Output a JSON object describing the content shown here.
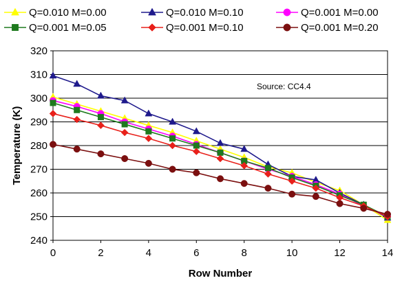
{
  "chart_data": {
    "type": "line",
    "xlabel": "Row Number",
    "ylabel": "Temperature (K)",
    "annotation": "Source: CC4.4",
    "xlim": [
      0,
      14
    ],
    "ylim": [
      240,
      320
    ],
    "xticks": [
      "0",
      "2",
      "4",
      "6",
      "8",
      "10",
      "12",
      "14"
    ],
    "yticks": [
      "240",
      "250",
      "260",
      "270",
      "280",
      "290",
      "300",
      "310",
      "320"
    ],
    "grid": "horizontal",
    "legend_position": "top",
    "x": [
      0,
      1,
      2,
      3,
      4,
      5,
      6,
      7,
      8,
      9,
      10,
      11,
      12,
      13,
      14
    ],
    "series": [
      {
        "name": "Q=0.010 M=0.00",
        "color": "#FFFF00",
        "marker": "triangle",
        "values": [
          300.5,
          297.5,
          294.5,
          291.5,
          288.5,
          285.5,
          282.0,
          278.5,
          275.0,
          271.0,
          268.5,
          264.5,
          261.0,
          255.0,
          248.5
        ]
      },
      {
        "name": "Q=0.010 M=0.10",
        "color": "#1F1A8C",
        "marker": "triangle",
        "values": [
          309.5,
          306.0,
          301.0,
          299.0,
          293.5,
          290.0,
          286.0,
          281.0,
          278.5,
          272.0,
          267.0,
          265.5,
          260.0,
          255.0,
          249.5
        ]
      },
      {
        "name": "Q=0.001 M=0.00",
        "color": "#FF00FF",
        "marker": "circle",
        "values": [
          299.0,
          296.5,
          293.5,
          290.0,
          287.0,
          284.0,
          280.5,
          277.0,
          273.5,
          270.0,
          267.0,
          263.5,
          259.5,
          254.5,
          250.0
        ]
      },
      {
        "name": "Q=0.001 M=0.05",
        "color": "#1E7A1E",
        "marker": "square",
        "values": [
          298.0,
          295.0,
          292.0,
          289.0,
          286.0,
          283.0,
          280.0,
          277.0,
          273.5,
          270.5,
          266.5,
          263.0,
          259.0,
          255.0,
          250.0
        ]
      },
      {
        "name": "Q=0.001 M=0.10",
        "color": "#E8201A",
        "marker": "diamond",
        "values": [
          293.5,
          291.0,
          288.5,
          285.5,
          283.0,
          280.0,
          277.5,
          274.5,
          271.5,
          268.0,
          265.0,
          262.0,
          258.0,
          254.5,
          250.0
        ]
      },
      {
        "name": "Q=0.001 M=0.20",
        "color": "#7B0F0F",
        "marker": "circle",
        "values": [
          280.5,
          278.5,
          276.5,
          274.5,
          272.5,
          270.0,
          268.5,
          266.0,
          264.0,
          262.0,
          259.5,
          258.5,
          255.5,
          253.5,
          251.0
        ]
      }
    ]
  }
}
